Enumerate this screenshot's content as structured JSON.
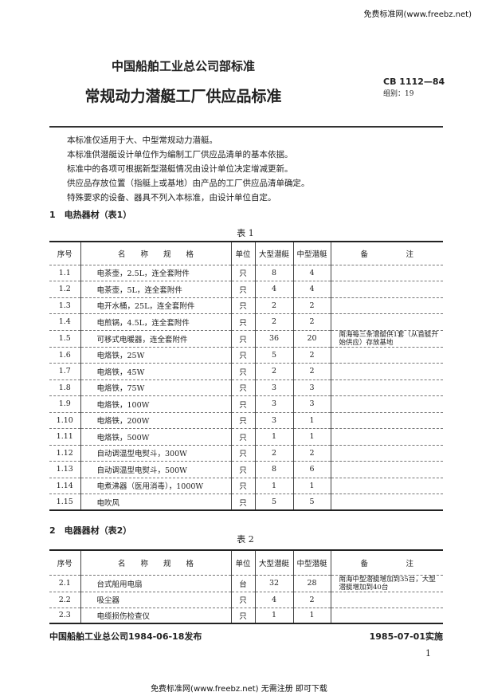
{
  "watermark_top": "免费标准网(www.freebz.net)",
  "watermark_bottom": "免费标准网(www.freebz.net) 无需注册 即可下载",
  "header": {
    "org": "中国船舶工业总公司部标准",
    "title": "常规动力潜艇工厂供应品标准",
    "code": "CB 1112—84",
    "group": "组别：19"
  },
  "intro": [
    "本标准仅适用于大、中型常规动力潜艇。",
    "本标准供潜艇设计单位作为编制工厂供应品清单的基本依据。",
    "标准中的各项可根据新型潜艇情况由设计单位决定增减更新。",
    "供应品存放位置（指艇上或基地）由产品的工厂供应品清单确定。",
    "特殊要求的设备、器具不列入本标准，由设计单位自定。"
  ],
  "headers": [
    "序号",
    "名　　称　　规　　格",
    "单位",
    "大型潜艇",
    "中型潜艇",
    "备　　　　　注"
  ],
  "section1": {
    "heading": "1　电热器材（表1）",
    "caption": "表 1",
    "rows": [
      [
        "1.1",
        "电茶壶，2.5L，连全套附件",
        "只",
        "8",
        "4",
        ""
      ],
      [
        "1.2",
        "电茶壶，5L，连全套附件",
        "只",
        "4",
        "4",
        ""
      ],
      [
        "1.3",
        "电开水桶，25L，连全套附件",
        "只",
        "2",
        "2",
        ""
      ],
      [
        "1.4",
        "电煎锅，4.5L，连全套附件",
        "只",
        "2",
        "2",
        ""
      ],
      [
        "1.5",
        "可移式电暖器，连全套附件",
        "只",
        "36",
        "20",
        "南海每三条潜艇供1套（从首艇开始供应）存放基地"
      ],
      [
        "1.6",
        "电烙铁，25W",
        "只",
        "5",
        "2",
        ""
      ],
      [
        "1.7",
        "电烙铁，45W",
        "只",
        "2",
        "2",
        ""
      ],
      [
        "1.8",
        "电烙铁，75W",
        "只",
        "3",
        "3",
        ""
      ],
      [
        "1.9",
        "电烙铁，100W",
        "只",
        "3",
        "3",
        ""
      ],
      [
        "1.10",
        "电烙铁，200W",
        "只",
        "3",
        "1",
        ""
      ],
      [
        "1.11",
        "电烙铁，500W",
        "只",
        "1",
        "1",
        ""
      ],
      [
        "1.12",
        "自动调温型电熨斗，300W",
        "只",
        "2",
        "2",
        ""
      ],
      [
        "1.13",
        "自动调温型电熨斗，500W",
        "只",
        "8",
        "6",
        ""
      ],
      [
        "1.14",
        "电煮沸器（医用消毒），1000W",
        "只",
        "1",
        "1",
        ""
      ],
      [
        "1.15",
        "电吹风",
        "只",
        "5",
        "5",
        ""
      ]
    ]
  },
  "section2": {
    "heading": "2　电器器材（表2）",
    "caption": "表 2",
    "rows": [
      [
        "2.1",
        "台式船用电扇",
        "台",
        "32",
        "28",
        "南海中型潜艇增加到35台，大型潜艇增加到40台"
      ],
      [
        "2.2",
        "吸尘器",
        "只",
        "4",
        "2",
        ""
      ],
      [
        "2.3",
        "电缆损伤检查仪",
        "只",
        "1",
        "1",
        ""
      ]
    ]
  },
  "footer": {
    "issued": "中国船舶工业总公司1984-06-18发布",
    "effective": "1985-07-01实施",
    "page": "1"
  }
}
